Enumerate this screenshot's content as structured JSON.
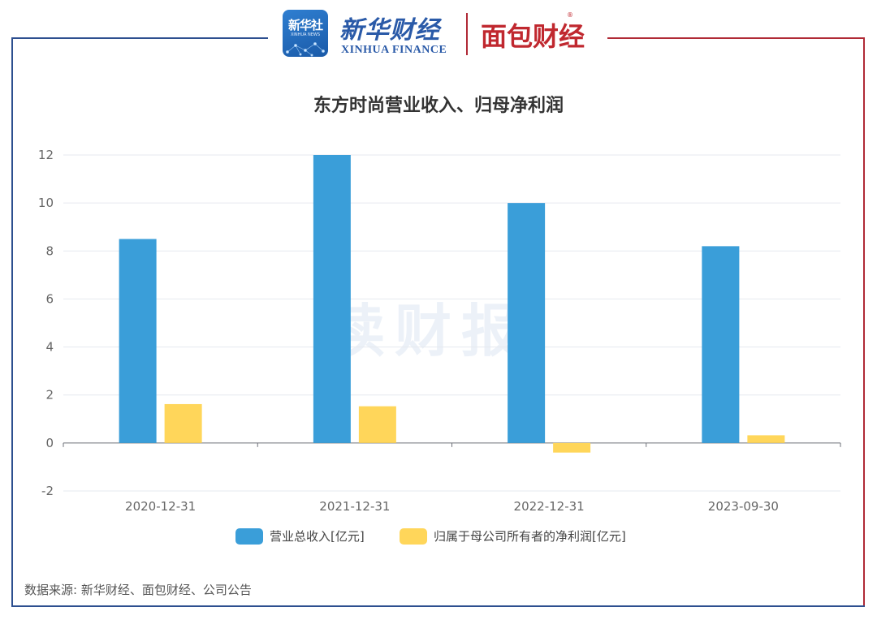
{
  "header": {
    "xinhua_box_text": "新华社",
    "xinhua_box_sub": "XINHUA NEWS",
    "xinhua_finance_cn": "新华财经",
    "xinhua_finance_en": "XINHUA FINANCE",
    "mianbao": "面包财经",
    "registered_mark": "®"
  },
  "watermark": "读财报",
  "source": "数据来源: 新华财经、面包财经、公司公告",
  "colors": {
    "revenue": "#3a9ed9",
    "net_profit": "#ffd65a",
    "frame_blue": "#2d4f8f",
    "frame_red": "#b02a36"
  },
  "chart_data": {
    "type": "bar",
    "title": "东方时尚营业收入、归母净利润",
    "categories": [
      "2020-12-31",
      "2021-12-31",
      "2022-12-31",
      "2023-09-30"
    ],
    "series": [
      {
        "name": "营业总收入[亿元]",
        "values": [
          8.5,
          12.0,
          10.0,
          8.2
        ]
      },
      {
        "name": "归属于母公司所有者的净利润[亿元]",
        "values": [
          1.62,
          1.53,
          -0.4,
          0.32
        ]
      }
    ],
    "yticks": [
      -2,
      0,
      2,
      4,
      6,
      8,
      10,
      12
    ],
    "ylim": [
      -2,
      12
    ],
    "grid": true,
    "legend_position": "bottom"
  }
}
